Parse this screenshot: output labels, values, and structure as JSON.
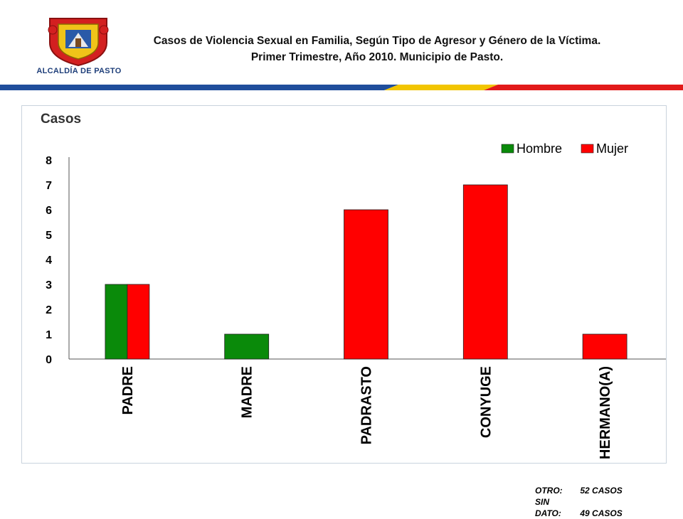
{
  "header": {
    "logo_text": "ALCALDÍA DE PASTO",
    "title_line1": "Casos de Violencia Sexual en Familia, Según Tipo de Agresor y Género de la Víctima.",
    "title_line2": "Primer Trimestre, Año 2010. Municipio de Pasto."
  },
  "colors": {
    "hombre": "#0a8a0a",
    "mujer": "#ff0000",
    "stripe_blue": "#1f4e9c",
    "stripe_yellow": "#f2c500",
    "stripe_red": "#e21a1a"
  },
  "chart_data": {
    "type": "bar",
    "ylabel": "Casos",
    "ylim": [
      0,
      8
    ],
    "yticks": [
      "0",
      "1",
      "2",
      "3",
      "4",
      "5",
      "6",
      "7",
      "8"
    ],
    "categories": [
      "PADRE",
      "MADRE",
      "PADRASTO",
      "CONYUGE",
      "HERMANO(A)"
    ],
    "series": [
      {
        "name": "Hombre",
        "values": [
          3,
          1,
          0,
          0,
          0
        ]
      },
      {
        "name": "Mujer",
        "values": [
          3,
          0,
          6,
          7,
          1
        ]
      }
    ],
    "legend_position": "top-right",
    "grid": false
  },
  "notes": [
    {
      "label": "OTRO:",
      "value": "52 CASOS"
    },
    {
      "label": "SIN DATO:",
      "value": "49 CASOS"
    }
  ]
}
